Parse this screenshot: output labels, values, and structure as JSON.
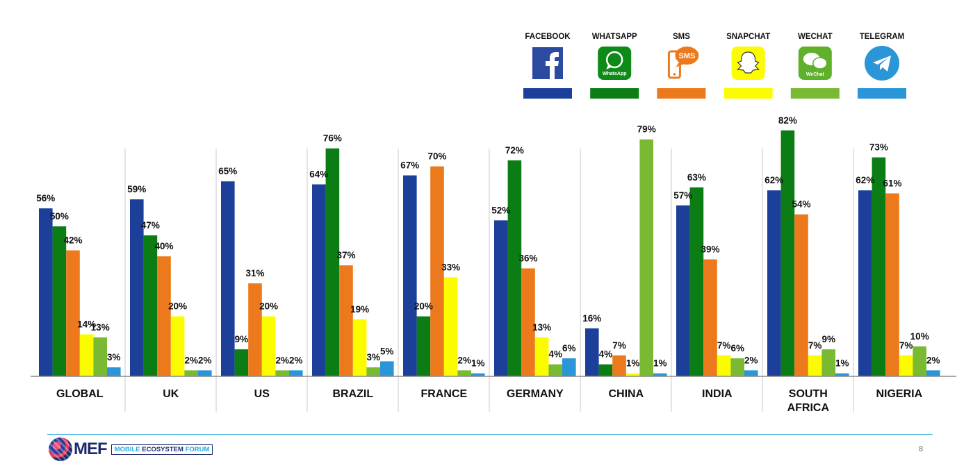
{
  "chart_data": {
    "type": "bar",
    "categories": [
      "GLOBAL",
      "UK",
      "US",
      "BRAZIL",
      "FRANCE",
      "GERMANY",
      "CHINA",
      "INDIA",
      "SOUTH AFRICA",
      "NIGERIA"
    ],
    "series": [
      {
        "name": "FACEBOOK",
        "color": "#1c3f9a",
        "icon": "facebook-icon",
        "values": [
          56,
          59,
          65,
          64,
          67,
          52,
          16,
          57,
          62,
          62
        ]
      },
      {
        "name": "WHATSAPP",
        "color": "#0b7d14",
        "icon": "whatsapp-icon",
        "values": [
          50,
          47,
          9,
          76,
          20,
          72,
          4,
          63,
          82,
          73
        ]
      },
      {
        "name": "SMS",
        "color": "#ec7a1c",
        "icon": "sms-icon",
        "values": [
          42,
          40,
          31,
          37,
          70,
          36,
          7,
          39,
          54,
          61
        ]
      },
      {
        "name": "SNAPCHAT",
        "color": "#fcfc00",
        "icon": "snapchat-icon",
        "values": [
          14,
          20,
          20,
          19,
          33,
          13,
          1,
          7,
          7,
          7
        ]
      },
      {
        "name": "WECHAT",
        "color": "#7aba33",
        "icon": "wechat-icon",
        "values": [
          13,
          2,
          2,
          3,
          2,
          4,
          79,
          6,
          9,
          10
        ]
      },
      {
        "name": "TELEGRAM",
        "color": "#2a96d8",
        "icon": "telegram-icon",
        "values": [
          3,
          2,
          2,
          5,
          1,
          6,
          1,
          2,
          1,
          2
        ]
      }
    ],
    "value_suffix": "%",
    "ylim": [
      0,
      82
    ],
    "grid": false,
    "legend_position": "top-right",
    "title": "",
    "xlabel": "",
    "ylabel": ""
  },
  "footer": {
    "logo_text": "MEF",
    "logo_sub_a": "MOBILE",
    "logo_sub_b": " ECOSYSTEM ",
    "logo_sub_c": "FORUM",
    "page_number": "8"
  }
}
